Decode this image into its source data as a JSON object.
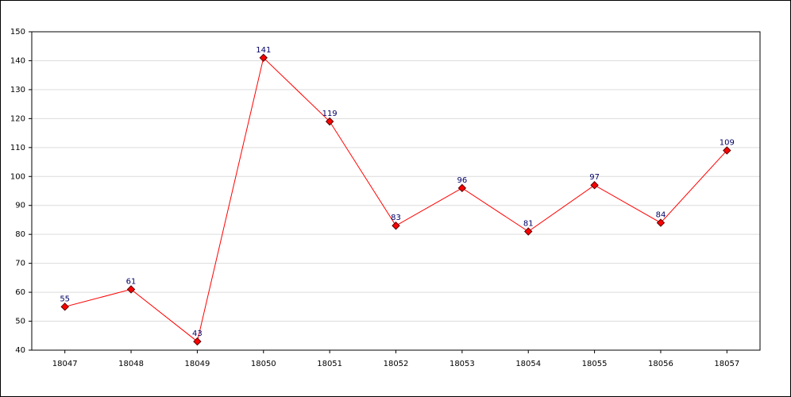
{
  "chart_data": {
    "type": "line",
    "categories": [
      "18047",
      "18048",
      "18049",
      "18050",
      "18051",
      "18052",
      "18053",
      "18054",
      "18055",
      "18056",
      "18057"
    ],
    "series": [
      {
        "color": "#ff0000",
        "values": [
          55,
          61,
          43,
          141,
          119,
          83,
          96,
          81,
          97,
          84,
          109
        ]
      }
    ],
    "ylim": [
      40,
      150
    ],
    "yticks": [
      40,
      50,
      60,
      70,
      80,
      90,
      100,
      110,
      120,
      130,
      140,
      150
    ],
    "grid": true
  }
}
